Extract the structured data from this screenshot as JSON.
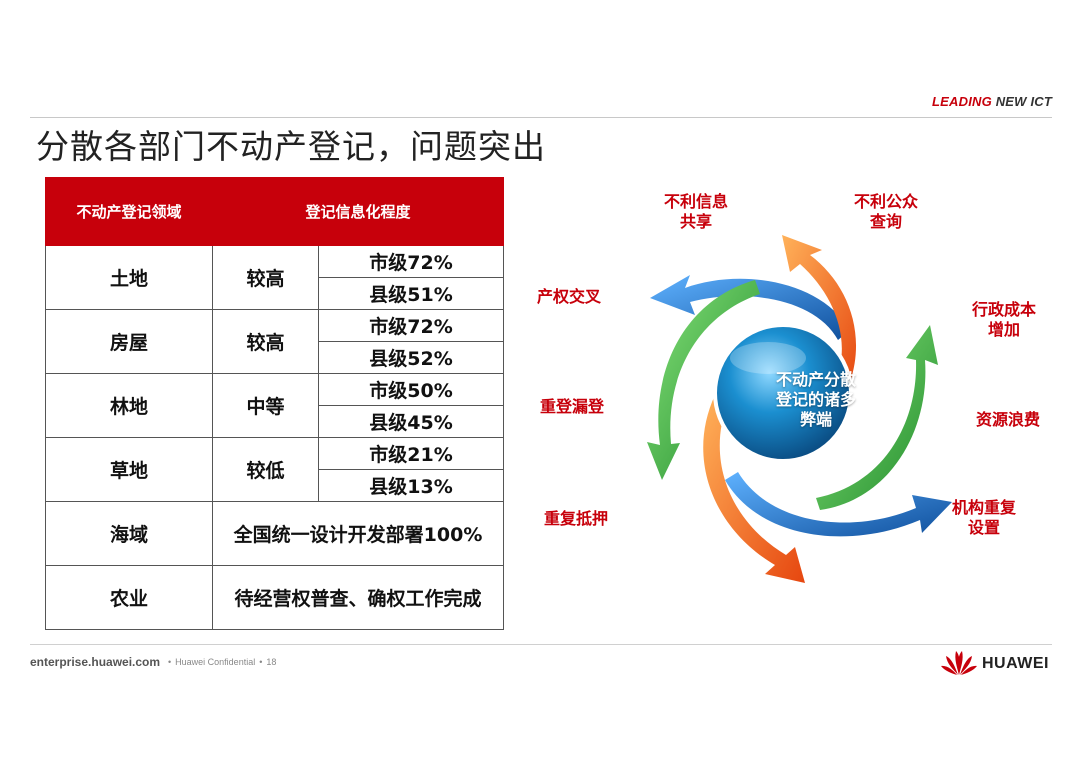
{
  "header": {
    "tagline_part1": "LEADING",
    "tagline_part2": " NEW ICT",
    "title": "分散各部门不动产登记，问题突出"
  },
  "table": {
    "headers": [
      "不动产登记领域",
      "登记信息化程度"
    ],
    "rows": [
      {
        "area": "土地",
        "level": "较高",
        "city": "市级72%",
        "county": "县级51%"
      },
      {
        "area": "房屋",
        "level": "较高",
        "city": "市级72%",
        "county": "县级52%"
      },
      {
        "area": "林地",
        "level": "中等",
        "city": "市级50%",
        "county": "县级45%"
      },
      {
        "area": "草地",
        "level": "较低",
        "city": "市级21%",
        "county": "县级13%"
      }
    ],
    "merged_rows": [
      {
        "area": "海域",
        "note": "全国统一设计开发部署100%"
      },
      {
        "area": "农业",
        "note": "待经营权普查、确权工作完成"
      }
    ]
  },
  "diagram": {
    "center_line1": "不动产分散",
    "center_line2": "登记的诸多",
    "center_line3": "弊端",
    "problems": [
      {
        "line1": "不利信息",
        "line2": "共享"
      },
      {
        "line1": "不利公众",
        "line2": "查询"
      },
      {
        "line1": "产权交叉",
        "line2": ""
      },
      {
        "line1": "行政成本",
        "line2": "增加"
      },
      {
        "line1": "重登漏登",
        "line2": ""
      },
      {
        "line1": "资源浪费",
        "line2": ""
      },
      {
        "line1": "重复抵押",
        "line2": ""
      },
      {
        "line1": "机构重复",
        "line2": "设置"
      }
    ],
    "colors": {
      "red": "#c7000b",
      "blue": "#1f6fc0",
      "orange": "#f26a1b",
      "green": "#3aa43a",
      "sphere": "#1b8fd0"
    }
  },
  "footer": {
    "site": "enterprise.huawei.com",
    "confidential": "Huawei Confidential",
    "page": "18",
    "logo": "HUAWEI"
  }
}
